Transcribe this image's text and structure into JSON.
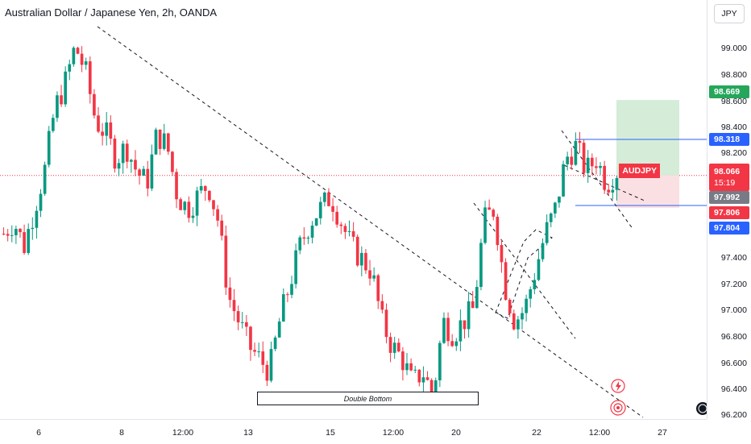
{
  "header": {
    "title": "Australian Dollar / Japanese Yen, 2h, OANDA"
  },
  "currency_button": "JPY",
  "price_axis": {
    "ticks": [
      "99.000",
      "98.800",
      "98.600",
      "98.400",
      "98.200",
      "97.400",
      "97.200",
      "97.000",
      "96.800",
      "96.600",
      "96.400",
      "96.200"
    ]
  },
  "tags": {
    "target": "98.669",
    "upper_line": "98.318",
    "last_price": "98.066",
    "countdown": "15:19",
    "mid": "97.992",
    "stop": "97.806",
    "lower_line": "97.804",
    "symbol": "AUDJPY"
  },
  "time_axis": {
    "labels": [
      "6",
      "8",
      "12:00",
      "13",
      "15",
      "12:00",
      "20",
      "22",
      "12:00",
      "27"
    ]
  },
  "annotation": {
    "double_bottom": "Double Bottom"
  },
  "colors": {
    "up": "#089981",
    "down": "#f23645",
    "blue": "#2962ff",
    "grey": "#787b86",
    "tp_zone": "#d5ecd8",
    "sl_zone": "#fbe0e3"
  },
  "icons": [
    "lightning-icon",
    "target-icon",
    "logo-icon"
  ],
  "chart_data": {
    "type": "candlestick",
    "title": "Australian Dollar / Japanese Yen, 2h, OANDA",
    "y_range": [
      96.15,
      99.25
    ],
    "x_tick_labels": [
      "6",
      "8",
      "12:00",
      "13",
      "15",
      "12:00",
      "20",
      "22",
      "12:00",
      "27"
    ],
    "close_path": [
      97.6,
      97.7,
      97.5,
      97.8,
      98.1,
      98.6,
      98.8,
      99.1,
      98.9,
      98.5,
      98.4,
      98.2,
      98.3,
      98.1,
      98.0,
      98.4,
      98.3,
      97.9,
      97.8,
      97.9,
      98.0,
      97.7,
      97.1,
      96.9,
      96.7,
      96.6,
      96.5,
      96.9,
      97.2,
      97.5,
      97.7,
      97.8,
      97.9,
      97.7,
      97.5,
      97.4,
      97.3,
      96.9,
      96.7,
      96.6,
      96.4,
      96.5,
      96.3,
      96.9,
      96.8,
      96.9,
      97.0,
      97.7,
      97.8,
      97.2,
      96.9,
      97.0,
      97.3,
      97.6,
      97.8,
      98.2,
      98.3,
      98.1,
      98.2,
      98.0,
      98.1
    ],
    "last_price": 98.066,
    "position": {
      "entry": 98.066,
      "target": 98.669,
      "stop": 97.806
    }
  }
}
